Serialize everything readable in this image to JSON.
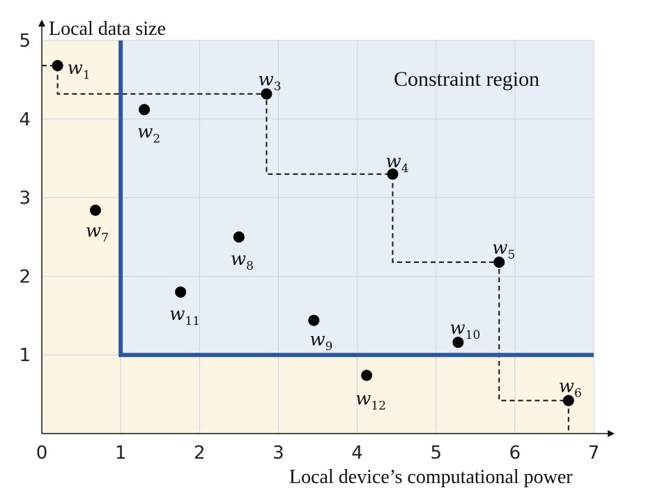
{
  "chart_data": {
    "type": "scatter",
    "xlabel": "Local device’s computational power",
    "ylabel": "Local data size",
    "xlim": [
      0,
      7
    ],
    "ylim": [
      0,
      5
    ],
    "x_ticks": [
      "0",
      "1",
      "2",
      "3",
      "4",
      "5",
      "6",
      "7"
    ],
    "y_ticks": [
      "1",
      "2",
      "3",
      "4",
      "5"
    ],
    "grid": true,
    "region_label": "Constraint region",
    "constraint": {
      "min_x": 1,
      "min_y": 1
    },
    "colors": {
      "constraint_region": "#e8eef8",
      "outside_region": "#fdf5e4",
      "boundary": "#2f56a0",
      "grid": "#c9d3e3",
      "points": "#000000"
    },
    "points": [
      {
        "label": "w",
        "sub": "1",
        "x": 0.2,
        "y": 4.68
      },
      {
        "label": "w",
        "sub": "2",
        "x": 1.3,
        "y": 4.12
      },
      {
        "label": "w",
        "sub": "3",
        "x": 2.85,
        "y": 4.32
      },
      {
        "label": "w",
        "sub": "4",
        "x": 4.45,
        "y": 3.3
      },
      {
        "label": "w",
        "sub": "5",
        "x": 5.8,
        "y": 2.18
      },
      {
        "label": "w",
        "sub": "6",
        "x": 6.68,
        "y": 0.42
      },
      {
        "label": "w",
        "sub": "7",
        "x": 0.68,
        "y": 2.84
      },
      {
        "label": "w",
        "sub": "8",
        "x": 2.5,
        "y": 2.5
      },
      {
        "label": "w",
        "sub": "9",
        "x": 3.45,
        "y": 1.44
      },
      {
        "label": "w",
        "sub": "10",
        "x": 5.28,
        "y": 1.16
      },
      {
        "label": "w",
        "sub": "11",
        "x": 1.76,
        "y": 1.8
      },
      {
        "label": "w",
        "sub": "12",
        "x": 4.12,
        "y": 0.74
      }
    ],
    "pareto_staircase": [
      [
        0,
        4.68
      ],
      [
        0.2,
        4.68
      ],
      [
        0.2,
        4.32
      ],
      [
        2.85,
        4.32
      ],
      [
        2.85,
        3.3
      ],
      [
        4.45,
        3.3
      ],
      [
        4.45,
        2.18
      ],
      [
        5.8,
        2.18
      ],
      [
        5.8,
        0.42
      ],
      [
        6.68,
        0.42
      ],
      [
        6.68,
        0
      ]
    ]
  }
}
